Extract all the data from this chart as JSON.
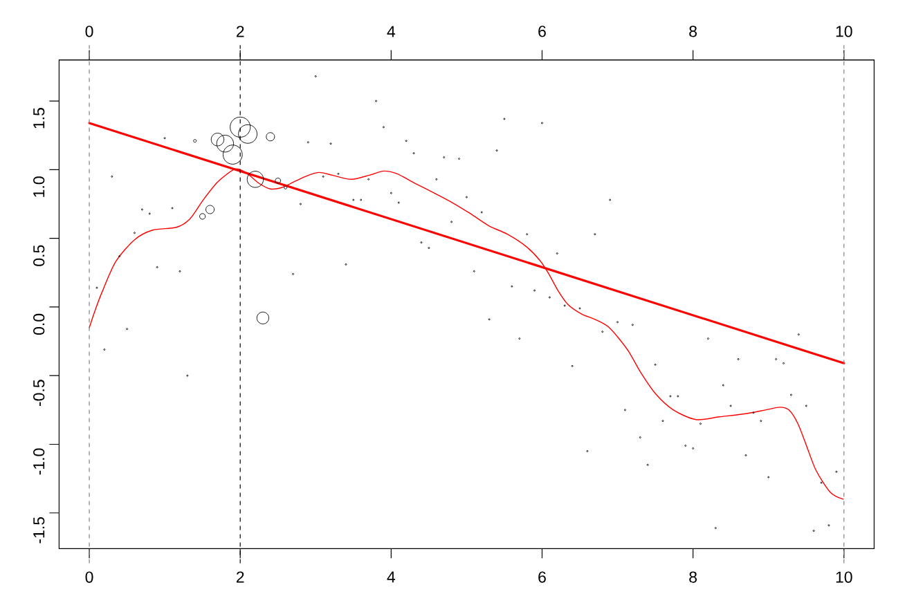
{
  "chart_data": {
    "type": "bubble",
    "xlim": [
      -0.4,
      10.4
    ],
    "xticks": [
      0,
      2,
      4,
      6,
      8,
      10
    ],
    "x2lim": [
      -0.4,
      10.4
    ],
    "x2ticks": [
      0,
      2,
      4,
      6,
      8,
      10
    ],
    "ylim": [
      -1.76,
      1.8
    ],
    "yticks": [
      -1.5,
      {
        "value": -1,
        "label": "-1.0"
      },
      -0.5,
      {
        "value": 0,
        "label": "0.0"
      },
      0.5,
      {
        "value": 1,
        "label": "1.0"
      },
      1.5
    ],
    "ref_lines": [
      {
        "axis": "x",
        "value": 0,
        "color": "#808080",
        "line_style": "dashed"
      },
      {
        "axis": "x",
        "value": 2,
        "color": "#000000",
        "line_style": "dashed"
      },
      {
        "axis": "x",
        "value": 10,
        "color": "#808080",
        "line_style": "dashed"
      }
    ],
    "series": [
      {
        "color": "#000000",
        "marker": "circle",
        "x": [
          0.1,
          0.2,
          0.3,
          0.4,
          0.5,
          0.6,
          0.7,
          0.8,
          0.9,
          1.0,
          1.1,
          1.2,
          1.3,
          1.4,
          1.5,
          1.6,
          1.7,
          1.8,
          1.9,
          2.0,
          2.1,
          2.2,
          2.3,
          2.4,
          2.5,
          2.6,
          2.7,
          2.8,
          2.9,
          3.0,
          3.1,
          3.2,
          3.3,
          3.4,
          3.5,
          3.6,
          3.7,
          3.8,
          3.9,
          4.0,
          4.1,
          4.2,
          4.3,
          4.4,
          4.5,
          4.6,
          4.7,
          4.8,
          4.9,
          5.0,
          5.1,
          5.2,
          5.3,
          5.4,
          5.5,
          5.6,
          5.7,
          5.8,
          5.9,
          6.0,
          6.1,
          6.2,
          6.3,
          6.4,
          6.5,
          6.6,
          6.7,
          6.8,
          6.9,
          7.0,
          7.1,
          7.2,
          7.3,
          7.4,
          7.5,
          7.6,
          7.7,
          7.8,
          7.9,
          8.0,
          8.1,
          8.2,
          8.3,
          8.4,
          8.5,
          8.6,
          8.7,
          8.8,
          8.9,
          9.0,
          9.1,
          9.2,
          9.3,
          9.4,
          9.5,
          9.6,
          9.7,
          9.8,
          9.9
        ],
        "values": [
          0.14,
          -0.31,
          0.95,
          0.37,
          -0.16,
          0.54,
          0.71,
          0.68,
          0.29,
          1.23,
          0.72,
          0.26,
          -0.5,
          1.21,
          0.66,
          0.71,
          1.22,
          1.19,
          1.11,
          1.31,
          1.26,
          0.93,
          -0.08,
          1.24,
          0.92,
          0.87,
          0.24,
          0.75,
          1.2,
          1.68,
          0.95,
          1.19,
          0.97,
          0.31,
          0.78,
          0.78,
          0.93,
          1.5,
          1.31,
          0.83,
          0.76,
          1.21,
          1.12,
          0.47,
          0.43,
          0.93,
          1.09,
          0.62,
          1.08,
          0.8,
          0.26,
          0.69,
          -0.09,
          1.14,
          1.37,
          0.15,
          -0.23,
          0.53,
          0.12,
          1.34,
          0.07,
          0.39,
          0.01,
          -0.43,
          -0.01,
          -1.05,
          0.53,
          -0.18,
          0.78,
          -0.11,
          -0.75,
          -0.13,
          -0.95,
          -1.15,
          -0.42,
          -0.83,
          -0.65,
          -0.65,
          -1.01,
          -1.03,
          -0.85,
          -0.23,
          -1.61,
          -0.57,
          -0.72,
          -0.38,
          -1.08,
          -0.77,
          -0.83,
          -1.24,
          -0.38,
          -0.41,
          -0.64,
          -0.2,
          -0.72,
          -1.63,
          -1.28,
          -1.59,
          -1.2
        ],
        "sizes": [
          0.005,
          0.005,
          0.005,
          0.005,
          0.005,
          0.005,
          0.005,
          0.005,
          0.005,
          0.005,
          0.005,
          0.005,
          0.005,
          0.02,
          0.08,
          0.17,
          0.4,
          0.7,
          0.9,
          1,
          0.85,
          0.65,
          0.35,
          0.17,
          0.07,
          0.02,
          0.005,
          0.005,
          0.005,
          0.005,
          0.005,
          0.005,
          0.005,
          0.005,
          0.005,
          0.005,
          0.005,
          0.005,
          0.005,
          0.005,
          0.005,
          0.005,
          0.005,
          0.005,
          0.005,
          0.005,
          0.005,
          0.005,
          0.005,
          0.005,
          0.005,
          0.005,
          0.005,
          0.005,
          0.005,
          0.005,
          0.005,
          0.005,
          0.005,
          0.005,
          0.005,
          0.005,
          0.005,
          0.005,
          0.005,
          0.005,
          0.005,
          0.005,
          0.005,
          0.005,
          0.005,
          0.005,
          0.005,
          0.005,
          0.005,
          0.005,
          0.005,
          0.005,
          0.005,
          0.005,
          0.005,
          0.005,
          0.005,
          0.005,
          0.005,
          0.005,
          0.005,
          0.005,
          0.005,
          0.005,
          0.005,
          0.005,
          0.005,
          0.005,
          0.005,
          0.005,
          0.005,
          0.005,
          0.005
        ]
      },
      {
        "type": "line",
        "color": "#ff0000",
        "x": [
          0,
          10
        ],
        "values": [
          1.34,
          -0.41
        ]
      },
      {
        "type": "line",
        "color": "#ff0000",
        "x": [
          0,
          0.08,
          0.17,
          0.35,
          0.6,
          0.84,
          1.15,
          1.33,
          1.51,
          1.7,
          1.91,
          2.0,
          2.12,
          2.25,
          2.4,
          2.55,
          2.67,
          2.86,
          3.04,
          3.22,
          3.47,
          3.71,
          3.9,
          4.08,
          4.32,
          4.57,
          4.81,
          5.05,
          5.3,
          5.54,
          5.79,
          5.97,
          6.09,
          6.21,
          6.34,
          6.52,
          6.7,
          6.89,
          7.13,
          7.31,
          7.5,
          7.74,
          8.04,
          8.35,
          8.66,
          8.96,
          9.15,
          9.27,
          9.39,
          9.51,
          9.63,
          9.82,
          9.99
        ],
        "values": [
          -0.15,
          -0.02,
          0.11,
          0.33,
          0.49,
          0.56,
          0.58,
          0.64,
          0.78,
          0.91,
          1.0,
          1.0,
          0.96,
          0.9,
          0.86,
          0.87,
          0.9,
          0.95,
          0.98,
          0.96,
          0.93,
          0.96,
          0.99,
          0.97,
          0.9,
          0.83,
          0.76,
          0.68,
          0.59,
          0.53,
          0.44,
          0.34,
          0.24,
          0.12,
          0.02,
          -0.05,
          -0.09,
          -0.15,
          -0.31,
          -0.48,
          -0.63,
          -0.75,
          -0.82,
          -0.8,
          -0.78,
          -0.75,
          -0.73,
          -0.75,
          -0.85,
          -1.02,
          -1.19,
          -1.35,
          -1.4
        ]
      }
    ]
  }
}
